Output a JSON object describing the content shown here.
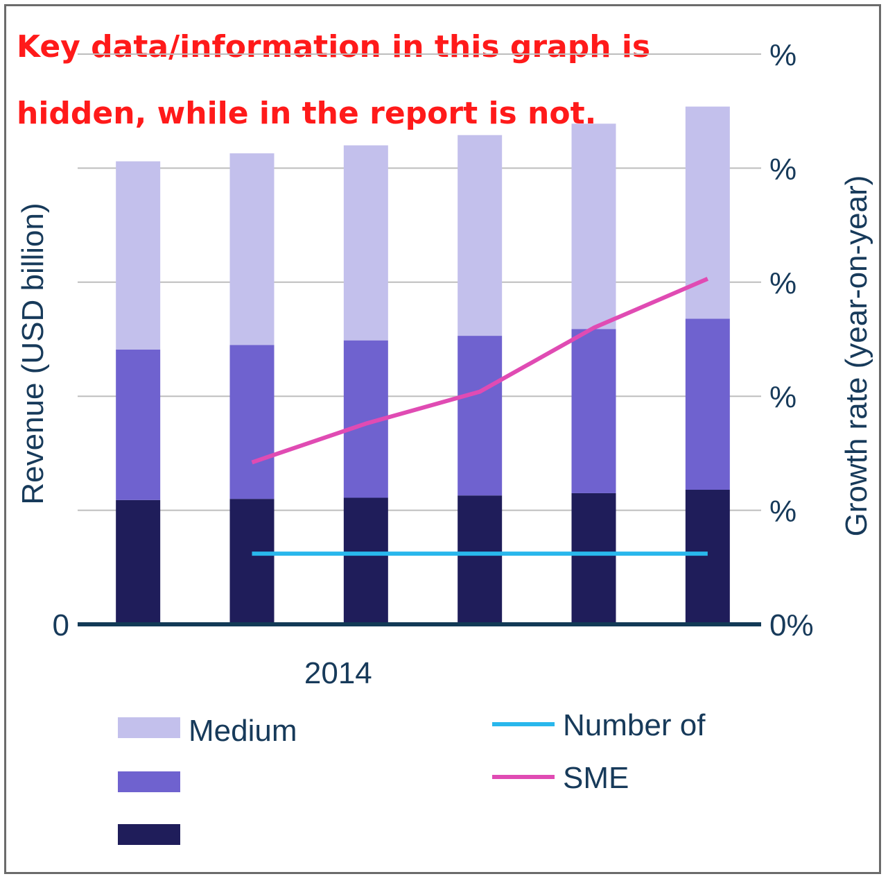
{
  "overlay_note": {
    "line1": "Key data/information in this graph is",
    "line2": "hidden, while in the report is not."
  },
  "colors": {
    "small": "#1f1d5a",
    "mid": "#6f62cf",
    "medium": "#c3c0ec",
    "number_line": "#29b7ec",
    "sme_line": "#e04bb3",
    "axis_text": "#173a5a",
    "grid": "#bdbdbd",
    "baseline": "#123a56"
  },
  "chart_data": {
    "type": "bar",
    "stacked": true,
    "categories": [
      "",
      "",
      "2014",
      "",
      "",
      ""
    ],
    "ylabel": "Revenue (USD billion)",
    "y2label": "Growth rate (year-on-year)",
    "y_ticks": [
      "0"
    ],
    "y2_ticks": [
      "0%",
      "%",
      "%",
      "%",
      "%",
      "%"
    ],
    "ylim": [
      0,
      5
    ],
    "y2lim": [
      0,
      5
    ],
    "grid": true,
    "legend_position": "bottom",
    "series": [
      {
        "name": "",
        "values": [
          1.09,
          1.1,
          1.11,
          1.13,
          1.15,
          1.18
        ]
      },
      {
        "name": "",
        "values": [
          1.32,
          1.35,
          1.38,
          1.4,
          1.44,
          1.5
        ]
      },
      {
        "name": "Medium",
        "values": [
          1.65,
          1.68,
          1.71,
          1.76,
          1.8,
          1.86
        ]
      }
    ],
    "line_series": [
      {
        "name": "Number of",
        "values": [
          null,
          0.62,
          0.62,
          0.62,
          0.62,
          0.62
        ]
      },
      {
        "name": "SME",
        "values": [
          null,
          1.42,
          1.76,
          2.04,
          2.6,
          3.03
        ]
      }
    ]
  }
}
